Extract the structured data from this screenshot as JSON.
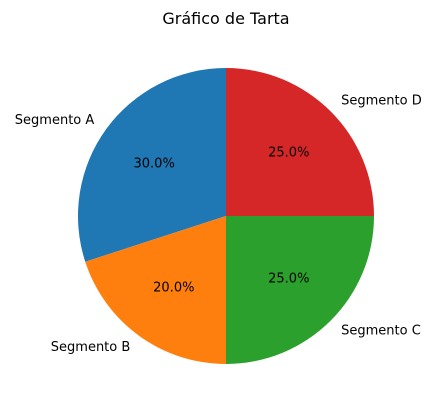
{
  "chart_data": {
    "type": "pie",
    "title": "Gráfico de Tarta",
    "slices": [
      {
        "label": "Segmento A",
        "value": 30,
        "pct_label": "30.0%",
        "color": "#1f77b4"
      },
      {
        "label": "Segmento B",
        "value": 20,
        "pct_label": "20.0%",
        "color": "#ff7f0e"
      },
      {
        "label": "Segmento C",
        "value": 25,
        "pct_label": "25.0%",
        "color": "#2ca02c"
      },
      {
        "label": "Segmento D",
        "value": 25,
        "pct_label": "25.0%",
        "color": "#d62728"
      }
    ],
    "start_angle_deg": 90,
    "direction": "counterclockwise"
  }
}
